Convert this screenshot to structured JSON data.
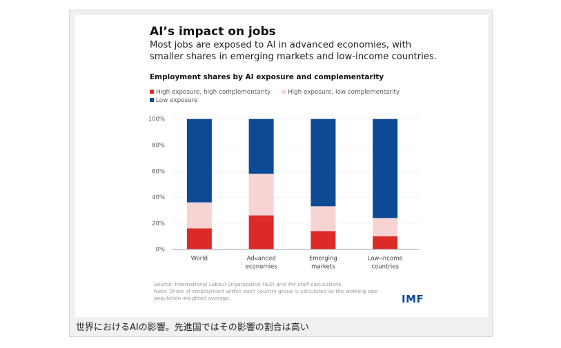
{
  "chart_data": {
    "type": "bar",
    "stacked": true,
    "title": "AI’s impact on jobs",
    "subtitle": "Most jobs are exposed to AI in advanced economies, with smaller shares in emerging markets and low-income countries.",
    "chart_title": "Employment shares by AI exposure and complementarity",
    "categories": [
      [
        "World"
      ],
      [
        "Advanced",
        "economies"
      ],
      [
        "Emerging",
        "markets"
      ],
      [
        "Low-income",
        "countries"
      ]
    ],
    "series": [
      {
        "name": "High exposure, high complementarity",
        "color": "#dc2b27",
        "values": [
          16,
          26,
          14,
          10
        ]
      },
      {
        "name": "High exposure, low complementarity",
        "color": "#f7d3d3",
        "values": [
          20,
          32,
          19,
          14
        ]
      },
      {
        "name": "Low exposure",
        "color": "#0d4a96",
        "values": [
          64,
          42,
          67,
          76
        ]
      }
    ],
    "yticks": [
      "0%",
      "20%",
      "40%",
      "60%",
      "80%",
      "100%"
    ],
    "ylim": [
      0,
      100
    ],
    "xlabel": "",
    "ylabel": "",
    "legend": "top-left",
    "source": "Source: International Labour Organization (ILO) and IMF staff calculations",
    "note": "Note: Share of employment within each country group is calculated as the working-age-population-weighted average.",
    "logo": "IMF"
  },
  "caption": "世界におけるAIの影響。先進国ではその影響の割合は高い"
}
